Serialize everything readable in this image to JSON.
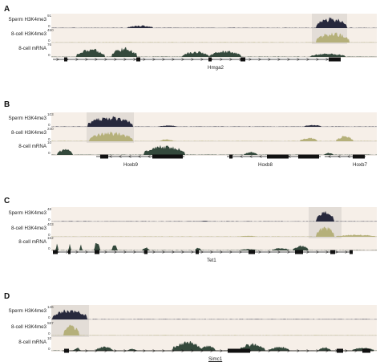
{
  "panels": [
    {
      "letter": "A",
      "gene_labels": [
        "Hmga2"
      ],
      "gene_underline": [
        false
      ],
      "tracks": [
        {
          "label": "Sperm H3K4me3",
          "max": "91",
          "min": "0"
        },
        {
          "label": "8-cell H3K4me3",
          "max": "450",
          "min": "0"
        },
        {
          "label": "8-cell mRNA",
          "max": "76",
          "min": "0"
        }
      ]
    },
    {
      "letter": "B",
      "gene_labels": [
        "Hoxb9",
        "Hoxb8",
        "Hoxb7"
      ],
      "gene_underline": [
        false,
        false,
        false
      ],
      "tracks": [
        {
          "label": "Sperm H3K4me3",
          "max": "103",
          "min": "0"
        },
        {
          "label": "8-cell H3K4me3",
          "max": "240",
          "min": "0"
        },
        {
          "label": "8-cell mRNA",
          "max": "10",
          "min": "0"
        }
      ]
    },
    {
      "letter": "C",
      "gene_labels": [
        "Tet1"
      ],
      "gene_underline": [
        false
      ],
      "tracks": [
        {
          "label": "Sperm H3K4me3",
          "max": "48",
          "min": "0"
        },
        {
          "label": "8-cell H3K4me3",
          "max": "403",
          "min": "0"
        },
        {
          "label": "8-cell mRNA",
          "max": "162",
          "min": "0"
        }
      ]
    },
    {
      "letter": "D",
      "gene_labels": [
        "Simc1"
      ],
      "gene_underline": [
        true
      ],
      "tracks": [
        {
          "label": "Sperm H3K4me3",
          "max": "146",
          "min": "0"
        },
        {
          "label": "8-cell H3K4me3",
          "max": "587",
          "min": "0"
        },
        {
          "label": "8-cell mRNA",
          "max": "10",
          "min": "0"
        }
      ]
    }
  ],
  "colors": {
    "sperm": "#27293d",
    "eight_cell": "#b5b07a",
    "mrna": "#34493c",
    "gene": "#111111",
    "highlight": "#dcdcdc"
  }
}
